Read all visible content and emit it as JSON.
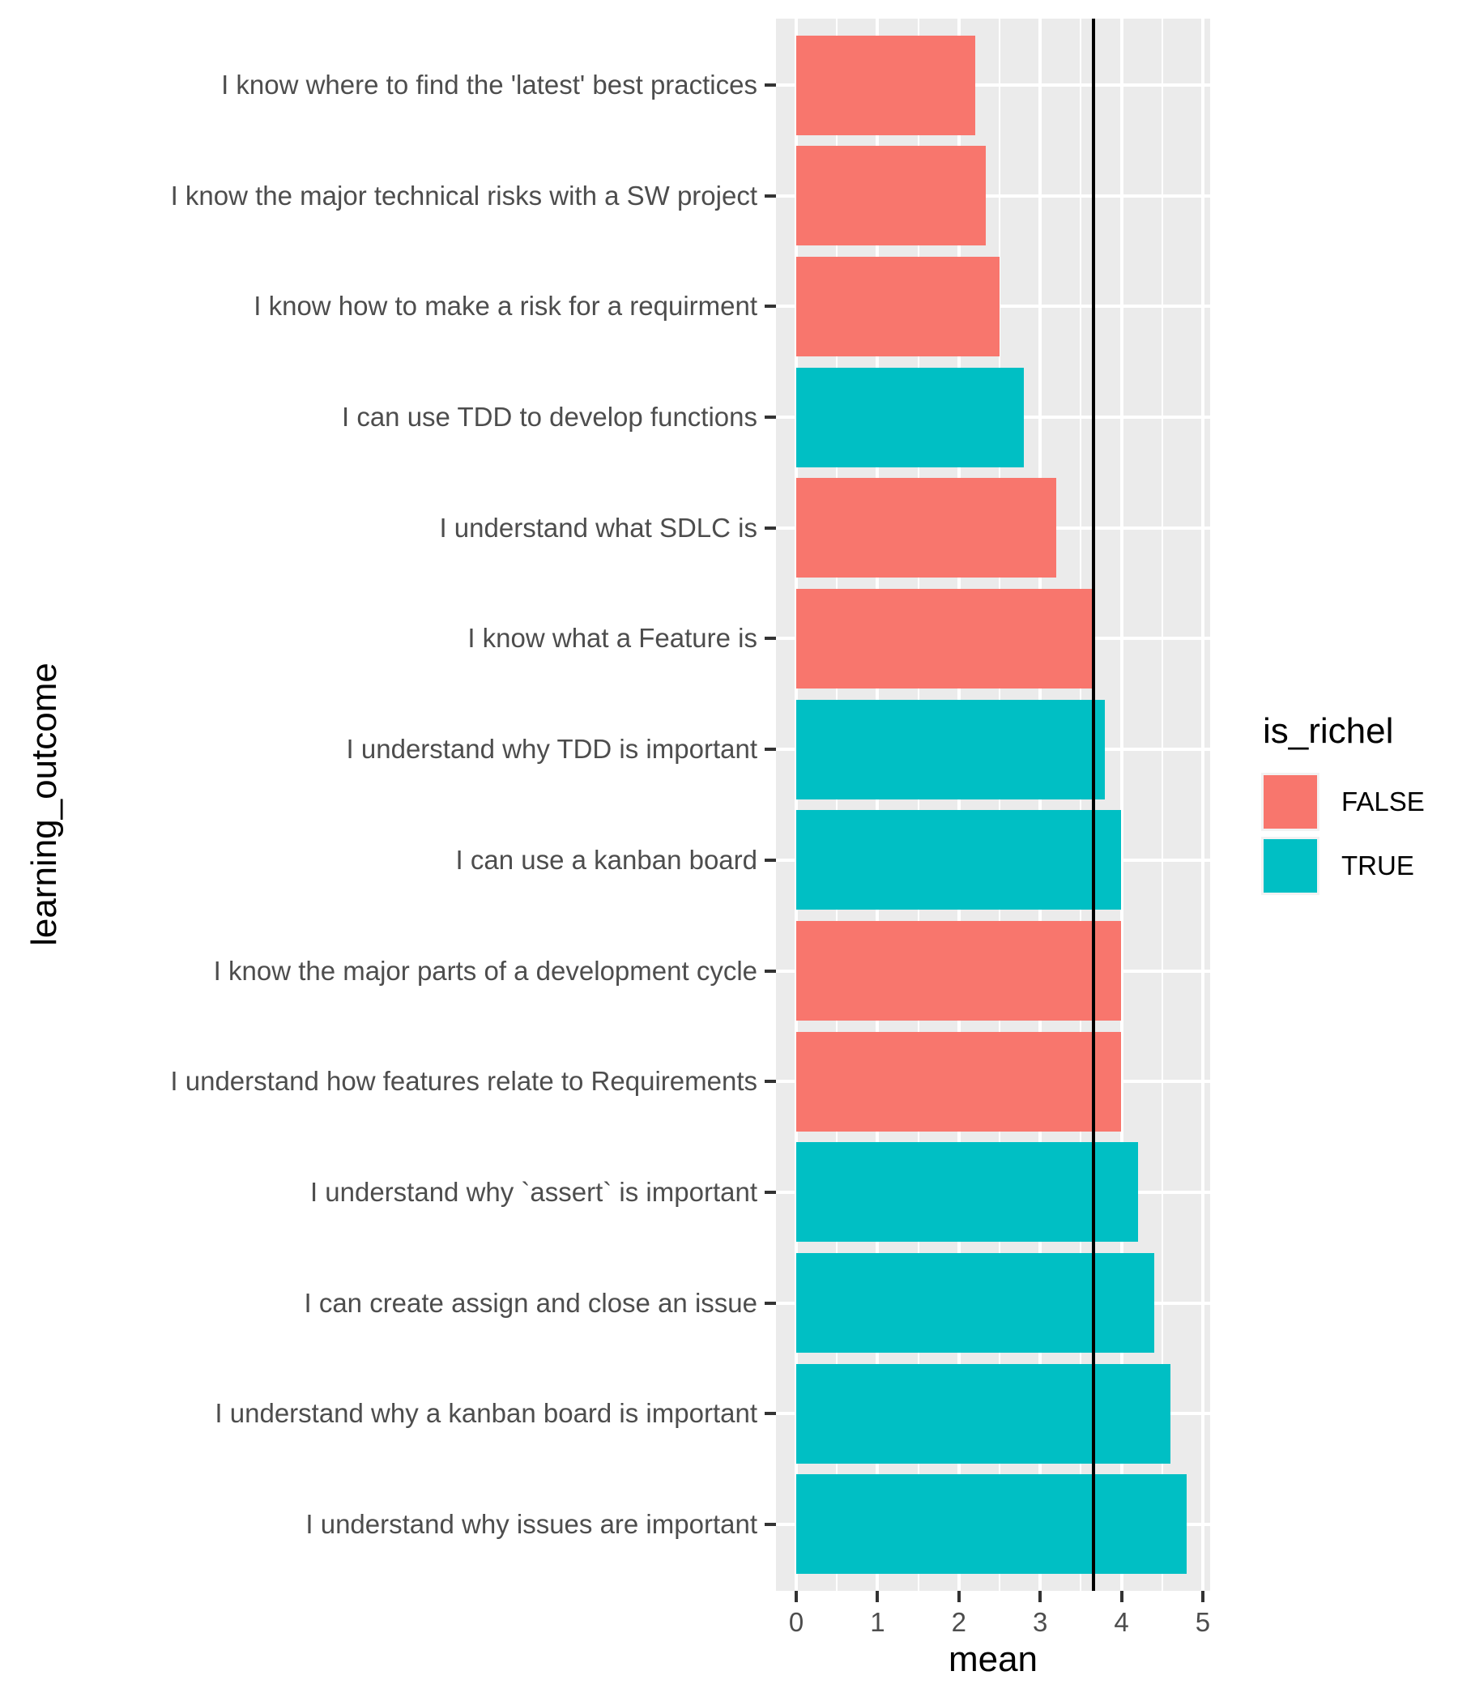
{
  "chart_data": {
    "type": "bar",
    "orientation": "horizontal",
    "xlabel": "mean",
    "ylabel": "learning_outcome",
    "xlim": [
      0,
      5
    ],
    "x_ticks": [
      0,
      1,
      2,
      3,
      4,
      5
    ],
    "x_minor_ticks": [
      0.5,
      1.5,
      2.5,
      3.5,
      4.5
    ],
    "grid": "white major and minor gridlines on gray panel",
    "legend_position": "right",
    "reference_line_x": 3.66,
    "rows": [
      {
        "label": "I know where to find the 'latest' best practices",
        "mean": 2.2,
        "is_richel": false
      },
      {
        "label": "I know the major technical risks with a SW project",
        "mean": 2.33,
        "is_richel": false
      },
      {
        "label": "I know how to make a risk for a requirment",
        "mean": 2.5,
        "is_richel": false
      },
      {
        "label": "I can use TDD to develop functions",
        "mean": 2.8,
        "is_richel": true
      },
      {
        "label": "I understand what SDLC is",
        "mean": 3.2,
        "is_richel": false
      },
      {
        "label": "I know what a Feature is",
        "mean": 3.65,
        "is_richel": false
      },
      {
        "label": "I understand why TDD is important",
        "mean": 3.8,
        "is_richel": true
      },
      {
        "label": "I can use a kanban board",
        "mean": 4.0,
        "is_richel": true
      },
      {
        "label": "I know the major parts of a development cycle",
        "mean": 4.0,
        "is_richel": false
      },
      {
        "label": "I understand how features relate to Requirements",
        "mean": 4.0,
        "is_richel": false
      },
      {
        "label": "I understand why `assert` is important",
        "mean": 4.2,
        "is_richel": true
      },
      {
        "label": "I can create assign and close an issue",
        "mean": 4.4,
        "is_richel": true
      },
      {
        "label": "I understand why a kanban board is important",
        "mean": 4.6,
        "is_richel": true
      },
      {
        "label": "I understand why issues are important",
        "mean": 4.8,
        "is_richel": true
      }
    ]
  },
  "axes": {
    "x_title": "mean",
    "y_title": "learning_outcome",
    "x_tick_labels": [
      "0",
      "1",
      "2",
      "3",
      "4",
      "5"
    ]
  },
  "legend": {
    "title": "is_richel",
    "entries": [
      {
        "label": "FALSE",
        "color": "#F8766D"
      },
      {
        "label": "TRUE",
        "color": "#00BFC4"
      }
    ]
  },
  "colors": {
    "false_bar": "#F8766D",
    "true_bar": "#00BFC4",
    "panel_bg": "#EBEBEB",
    "grid": "#FFFFFF",
    "tick": "#333333",
    "axis_text": "#4D4D4D",
    "title_text": "#000000",
    "reference_line": "#000000",
    "legend_key_bg": "#F2F2F2"
  }
}
